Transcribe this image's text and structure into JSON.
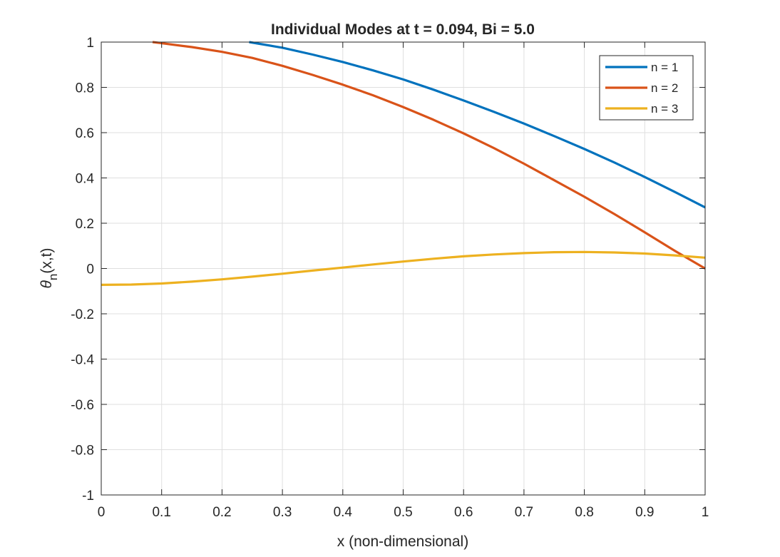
{
  "chart_data": {
    "type": "line",
    "title": "Individual Modes at t = 0.094, Bi = 5.0",
    "xlabel": "x (non-dimensional)",
    "ylabel_main": "θ",
    "ylabel_sub": "n",
    "ylabel_tail": "(x,t)",
    "xlim": [
      0,
      1
    ],
    "ylim": [
      -1,
      1
    ],
    "xticks": [
      0,
      0.1,
      0.2,
      0.3,
      0.4,
      0.5,
      0.6,
      0.7,
      0.8,
      0.9,
      1
    ],
    "xtick_labels": [
      "0",
      "0.1",
      "0.2",
      "0.3",
      "0.4",
      "0.5",
      "0.6",
      "0.7",
      "0.8",
      "0.9",
      "1"
    ],
    "yticks": [
      -1,
      -0.8,
      -0.6,
      -0.4,
      -0.2,
      0,
      0.2,
      0.4,
      0.6,
      0.8,
      1
    ],
    "ytick_labels": [
      "-1",
      "-0.8",
      "-0.6",
      "-0.4",
      "-0.2",
      "0",
      "0.2",
      "0.4",
      "0.6",
      "0.8",
      "1"
    ],
    "grid": true,
    "legend_position": "top-right",
    "series": [
      {
        "name": "n = 1",
        "color": "#0072BD",
        "x": [
          0.245,
          0.3,
          0.35,
          0.4,
          0.45,
          0.5,
          0.55,
          0.6,
          0.65,
          0.7,
          0.75,
          0.8,
          0.85,
          0.9,
          0.95,
          1.0
        ],
        "y": [
          1.0,
          0.975,
          0.945,
          0.912,
          0.875,
          0.835,
          0.79,
          0.742,
          0.692,
          0.64,
          0.585,
          0.528,
          0.468,
          0.404,
          0.338,
          0.27
        ]
      },
      {
        "name": "n = 2",
        "color": "#D95319",
        "x": [
          0.085,
          0.1,
          0.15,
          0.2,
          0.25,
          0.3,
          0.35,
          0.4,
          0.45,
          0.5,
          0.55,
          0.6,
          0.65,
          0.7,
          0.75,
          0.8,
          0.85,
          0.9,
          0.95,
          1.0
        ],
        "y": [
          1.0,
          0.995,
          0.978,
          0.957,
          0.93,
          0.895,
          0.855,
          0.812,
          0.765,
          0.713,
          0.657,
          0.597,
          0.532,
          0.463,
          0.39,
          0.317,
          0.24,
          0.16,
          0.078,
          0.0
        ]
      },
      {
        "name": "n = 3",
        "color": "#EDB120",
        "x": [
          0,
          0.05,
          0.1,
          0.15,
          0.2,
          0.25,
          0.3,
          0.35,
          0.4,
          0.45,
          0.5,
          0.55,
          0.6,
          0.65,
          0.7,
          0.75,
          0.8,
          0.85,
          0.9,
          0.95,
          1.0
        ],
        "y": [
          -0.072,
          -0.071,
          -0.066,
          -0.058,
          -0.048,
          -0.036,
          -0.023,
          -0.009,
          0.004,
          0.018,
          0.031,
          0.043,
          0.054,
          0.062,
          0.068,
          0.072,
          0.073,
          0.071,
          0.066,
          0.058,
          0.048
        ]
      }
    ]
  }
}
